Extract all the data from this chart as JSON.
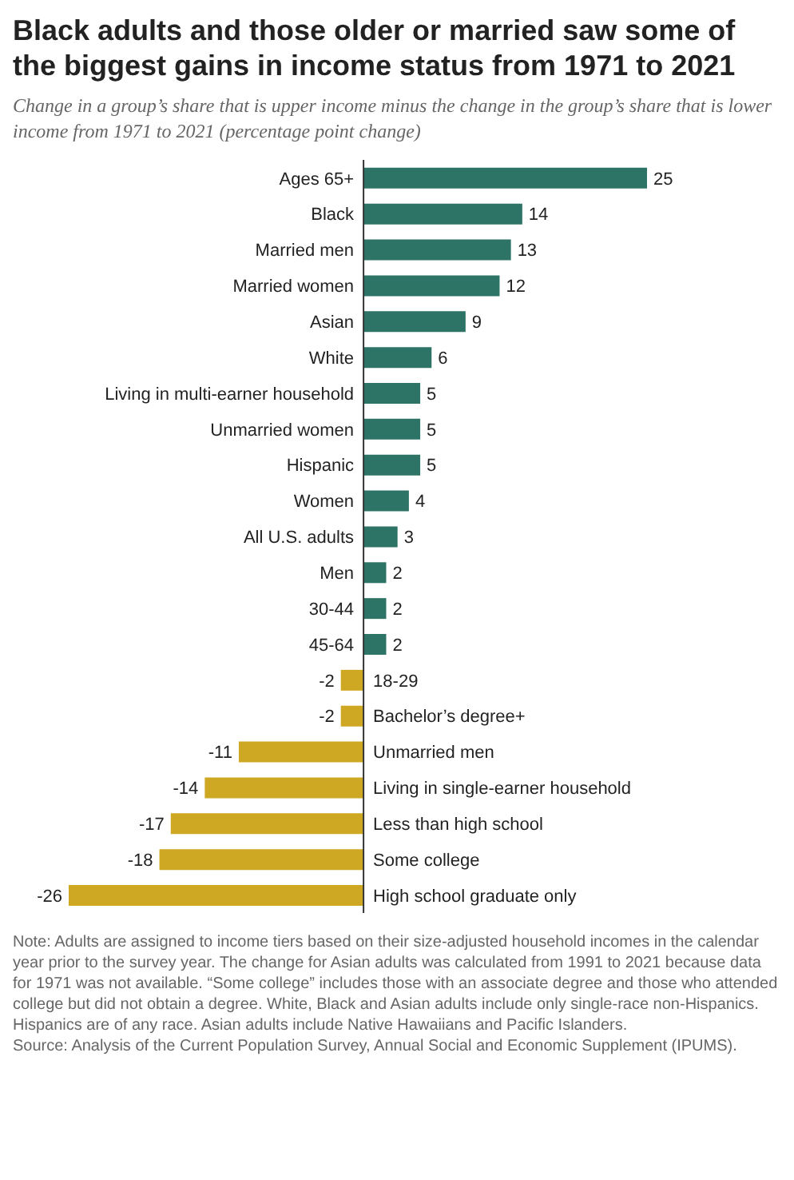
{
  "chart_data": {
    "type": "bar",
    "orientation": "horizontal",
    "title": "Black adults and those older or married saw some of the biggest gains in income status from 1971 to 2021",
    "subtitle": "Change in a group’s share that is upper income minus the change in the group’s share that is lower income from 1971 to 2021 (percentage point change)",
    "categories": [
      "Ages 65+",
      "Black",
      "Married men",
      "Married women",
      "Asian",
      "White",
      "Living in multi-earner household",
      "Unmarried women",
      "Hispanic",
      "Women",
      "All U.S. adults",
      "Men",
      "30-44",
      "45-64",
      "18-29",
      "Bachelor’s degree+",
      "Unmarried men",
      "Living in single-earner household",
      "Less than high school",
      "Some college",
      "High school graduate only"
    ],
    "values": [
      25,
      14,
      13,
      12,
      9,
      6,
      5,
      5,
      5,
      4,
      3,
      2,
      2,
      2,
      -2,
      -2,
      -11,
      -14,
      -17,
      -18,
      -26
    ],
    "colors": [
      "#2e7466",
      "#2e7466",
      "#2e7466",
      "#2e7466",
      "#2e7466",
      "#2e7466",
      "#2e7466",
      "#2e7466",
      "#2e7466",
      "#2e7466",
      "#2e7466",
      "#2e7466",
      "#2e7466",
      "#2e7466",
      "#cfa823",
      "#cfa823",
      "#cfa823",
      "#cfa823",
      "#cfa823",
      "#cfa823",
      "#cfa823"
    ],
    "data_labels": true,
    "annotations": [
      "Note: Adults are assigned to income tiers based on their size-adjusted household incomes in the calendar year prior to the survey year. The change for Asian adults was calculated from 1991 to 2021 because data for 1971 was not available. “Some college” includes those with an associate degree and those who attended college but did not obtain a degree. White, Black and Asian adults include only single-race non-Hispanics. Hispanics are of any race. Asian adults include Native Hawaiians and Pacific Islanders.",
      "Source: Analysis of the Current Population Survey, Annual Social and Economic Supplement (IPUMS)."
    ]
  }
}
